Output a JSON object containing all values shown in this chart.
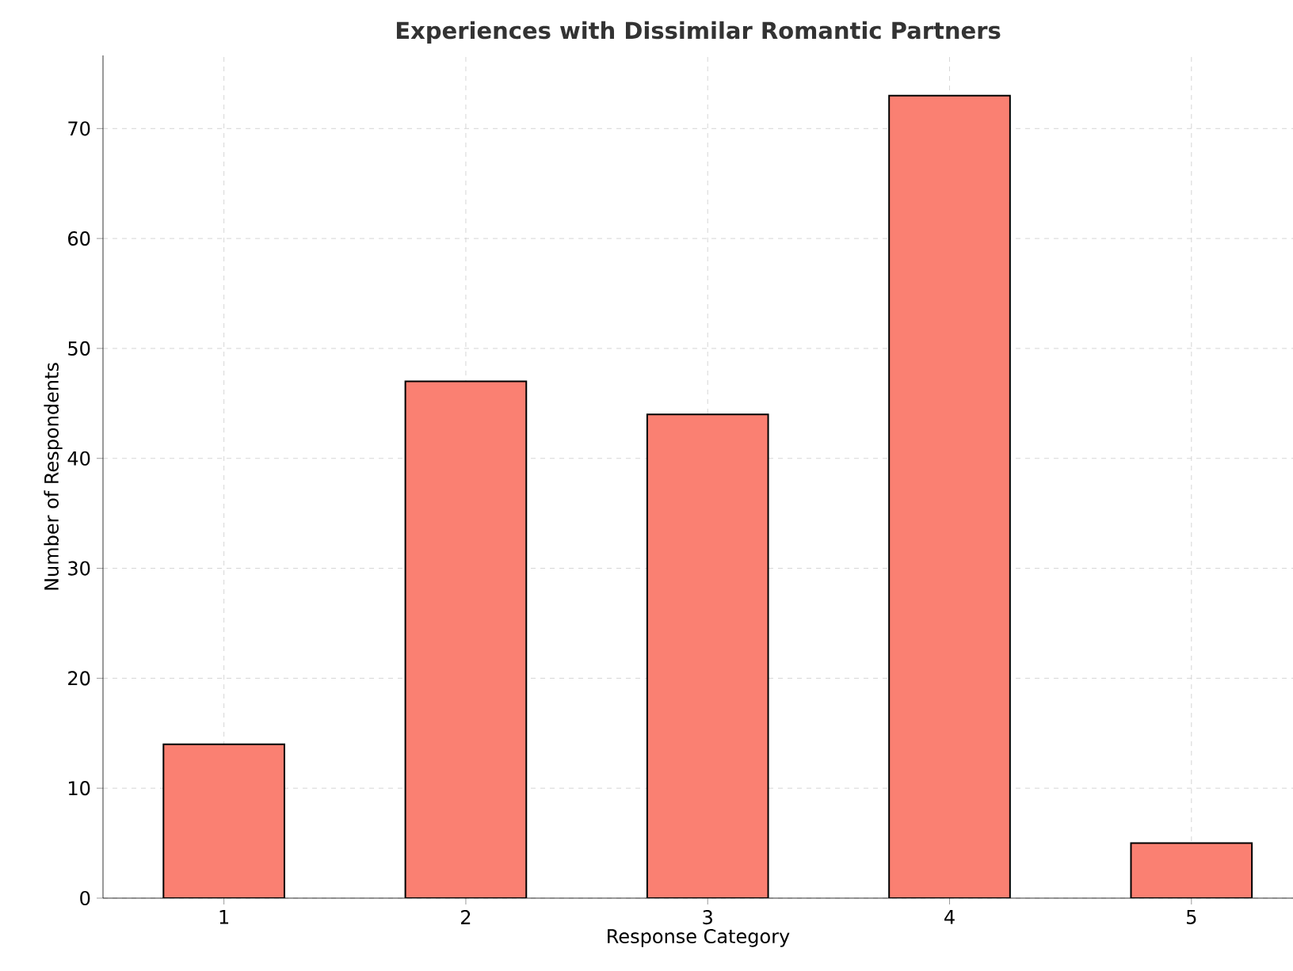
{
  "chart_data": {
    "type": "bar",
    "title": "Experiences with Dissimilar Romantic Partners",
    "xlabel": "Response Category",
    "ylabel": "Number of Respondents",
    "categories": [
      "1",
      "2",
      "3",
      "4",
      "5"
    ],
    "values": [
      14,
      47,
      44,
      73,
      5
    ],
    "color": "#fa8072",
    "ylim": [
      0,
      76.65
    ],
    "yticks": [
      0,
      10,
      20,
      30,
      40,
      50,
      60,
      70
    ],
    "grid": true
  }
}
